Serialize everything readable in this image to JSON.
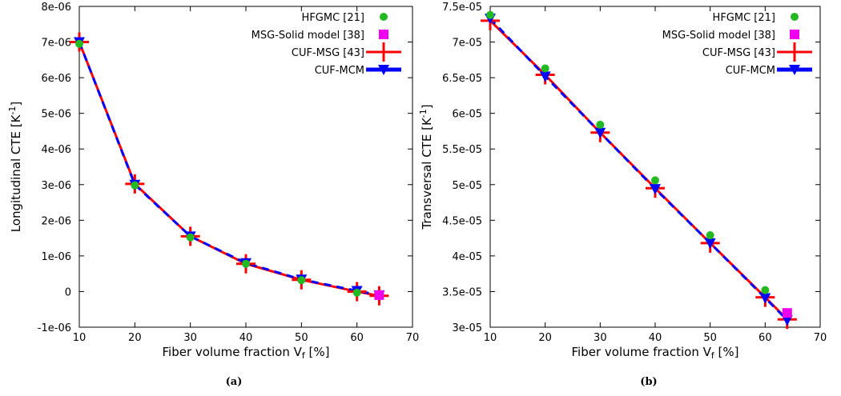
{
  "chart_data": [
    {
      "type": "line",
      "caption": "(a)",
      "xlabel": "Fiber volume fraction V",
      "xlabel_sub": "f",
      "xlabel_suffix": " [%]",
      "ylabel": "Longitudinal CTE [K",
      "ylabel_sup": "-1",
      "ylabel_suffix": "]",
      "xlim": [
        10,
        70
      ],
      "ylim": [
        -1e-06,
        8e-06
      ],
      "xticks": [
        10,
        20,
        30,
        40,
        50,
        60,
        70
      ],
      "yticks": [
        {
          "v": -1e-06,
          "label": "-1e-06"
        },
        {
          "v": 0,
          "label": "0"
        },
        {
          "v": 1e-06,
          "label": "1e-06"
        },
        {
          "v": 2e-06,
          "label": "2e-06"
        },
        {
          "v": 3e-06,
          "label": "3e-06"
        },
        {
          "v": 4e-06,
          "label": "4e-06"
        },
        {
          "v": 5e-06,
          "label": "5e-06"
        },
        {
          "v": 6e-06,
          "label": "6e-06"
        },
        {
          "v": 7e-06,
          "label": "7e-06"
        },
        {
          "v": 8e-06,
          "label": "8e-06"
        }
      ],
      "legend_position": "top-right",
      "series": [
        {
          "name": "HFGMC [21]",
          "marker": "circle",
          "color": "#22b922",
          "x": [
            10,
            20,
            30,
            40,
            50,
            60
          ],
          "y": [
            6.95e-06,
            2.98e-06,
            1.52e-06,
            7.8e-07,
            3.2e-07,
            -3e-08
          ]
        },
        {
          "name": "MSG-Solid model [38]",
          "marker": "square",
          "color": "#ee00ee",
          "x": [
            64
          ],
          "y": [
            -1e-07
          ]
        },
        {
          "name": "CUF-MSG [43]",
          "marker": "plus",
          "line": true,
          "color": "#ff0000",
          "x": [
            10,
            20,
            30,
            40,
            50,
            60,
            64
          ],
          "y": [
            7e-06,
            3.02e-06,
            1.55e-06,
            7.8e-07,
            3.3e-07,
            0.0,
            -1.2e-07
          ]
        },
        {
          "name": "CUF-MCM",
          "marker": "triangle-down",
          "line": true,
          "dashed": true,
          "color": "#0000ff",
          "x": [
            10,
            20,
            30,
            40,
            50,
            60,
            64
          ],
          "y": [
            7e-06,
            3e-06,
            1.55e-06,
            8e-07,
            3.4e-07,
            2e-08,
            -1e-07
          ]
        }
      ]
    },
    {
      "type": "line",
      "caption": "(b)",
      "xlabel": "Fiber volume fraction V",
      "xlabel_sub": "f",
      "xlabel_suffix": " [%]",
      "ylabel": "Transversal CTE [K",
      "ylabel_sup": "-1",
      "ylabel_suffix": "]",
      "xlim": [
        10,
        70
      ],
      "ylim": [
        3e-05,
        7.5e-05
      ],
      "xticks": [
        10,
        20,
        30,
        40,
        50,
        60,
        70
      ],
      "yticks": [
        {
          "v": 3e-05,
          "label": "3e-05"
        },
        {
          "v": 3.5e-05,
          "label": "3.5e-05"
        },
        {
          "v": 4e-05,
          "label": "4e-05"
        },
        {
          "v": 4.5e-05,
          "label": "4.5e-05"
        },
        {
          "v": 5e-05,
          "label": "5e-05"
        },
        {
          "v": 5.5e-05,
          "label": "5.5e-05"
        },
        {
          "v": 6e-05,
          "label": "6e-05"
        },
        {
          "v": 6.5e-05,
          "label": "6.5e-05"
        },
        {
          "v": 7e-05,
          "label": "7e-05"
        },
        {
          "v": 7.5e-05,
          "label": "7.5e-05"
        }
      ],
      "legend_position": "top-right",
      "series": [
        {
          "name": "HFGMC [21]",
          "marker": "circle",
          "color": "#22b922",
          "x": [
            10,
            20,
            30,
            40,
            50,
            60
          ],
          "y": [
            7.38e-05,
            6.63e-05,
            5.84e-05,
            5.06e-05,
            4.29e-05,
            3.52e-05
          ]
        },
        {
          "name": "MSG-Solid model [38]",
          "marker": "square",
          "color": "#ee00ee",
          "x": [
            64
          ],
          "y": [
            3.2e-05
          ]
        },
        {
          "name": "CUF-MSG [43]",
          "marker": "plus",
          "line": true,
          "color": "#ff0000",
          "x": [
            10,
            20,
            30,
            40,
            50,
            60,
            64
          ],
          "y": [
            7.3e-05,
            6.54e-05,
            5.73e-05,
            4.95e-05,
            4.18e-05,
            3.42e-05,
            3.11e-05
          ]
        },
        {
          "name": "CUF-MCM",
          "marker": "triangle-down",
          "line": true,
          "dashed": true,
          "color": "#0000ff",
          "x": [
            10,
            20,
            30,
            40,
            50,
            60,
            64
          ],
          "y": [
            7.33e-05,
            6.52e-05,
            5.73e-05,
            4.94e-05,
            4.18e-05,
            3.41e-05,
            3.1e-05
          ]
        }
      ]
    }
  ]
}
